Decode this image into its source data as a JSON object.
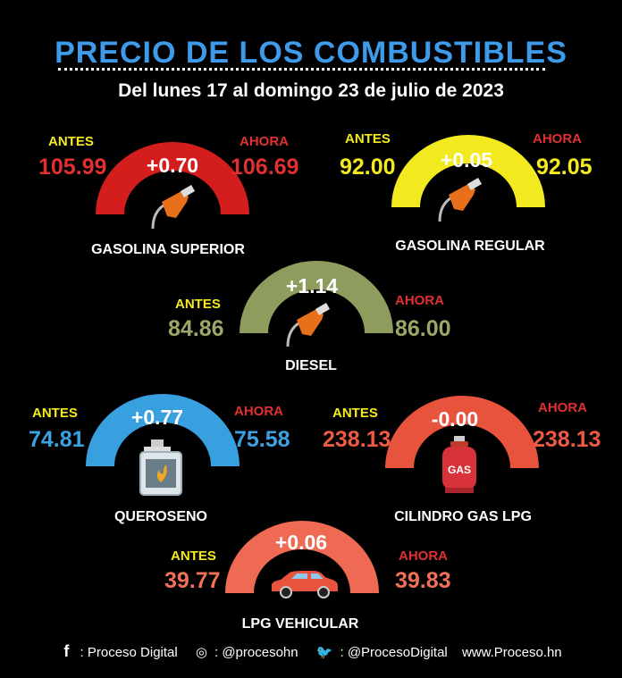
{
  "title": "PRECIO DE LOS COMBUSTIBLES",
  "subtitle": "Del lunes 17 al domingo 23 de julio de 2023",
  "label_before": "ANTES",
  "label_after": "AHORA",
  "fuels": [
    {
      "name": "GASOLINA SUPERIOR",
      "before": "105.99",
      "after": "106.69",
      "delta": "+0.70",
      "color": "#d41e1e",
      "before_color": "#e03030",
      "after_color": "#e03030",
      "icon": "fuel-nozzle-icon"
    },
    {
      "name": "GASOLINA REGULAR",
      "before": "92.00",
      "after": "92.05",
      "delta": "+0.05",
      "color": "#f2ea1e",
      "before_color": "#f5ea1f",
      "after_color": "#f5ea1f",
      "icon": "fuel-nozzle-icon"
    },
    {
      "name": "DIESEL",
      "before": "84.86",
      "after": "86.00",
      "delta": "+1.14",
      "color": "#8e9c5d",
      "before_color": "#9aa866",
      "after_color": "#9aa866",
      "icon": "fuel-nozzle-icon"
    },
    {
      "name": "QUEROSENO",
      "before": "74.81",
      "after": "75.58",
      "delta": "+0.77",
      "color": "#39a0e0",
      "before_color": "#3da2e2",
      "after_color": "#3da2e2",
      "icon": "kerosene-can-icon"
    },
    {
      "name": "CILINDRO GAS LPG",
      "before": "238.13",
      "after": "238.13",
      "delta": "-0.00",
      "color": "#e8533e",
      "before_color": "#ee5a44",
      "after_color": "#ee5a44",
      "icon": "gas-cylinder-icon"
    },
    {
      "name": "LPG VEHICULAR",
      "before": "39.77",
      "after": "39.83",
      "delta": "+0.06",
      "color": "#ee6a52",
      "before_color": "#f07058",
      "after_color": "#f07058",
      "icon": "car-icon"
    }
  ],
  "footer": {
    "facebook": ": Proceso Digital",
    "instagram": ": @procesohn",
    "twitter": ": @ProcesoDigital",
    "website": "www.Proceso.hn"
  },
  "label_colors": {
    "before": "#f5ea1f",
    "after": "#e03030"
  }
}
